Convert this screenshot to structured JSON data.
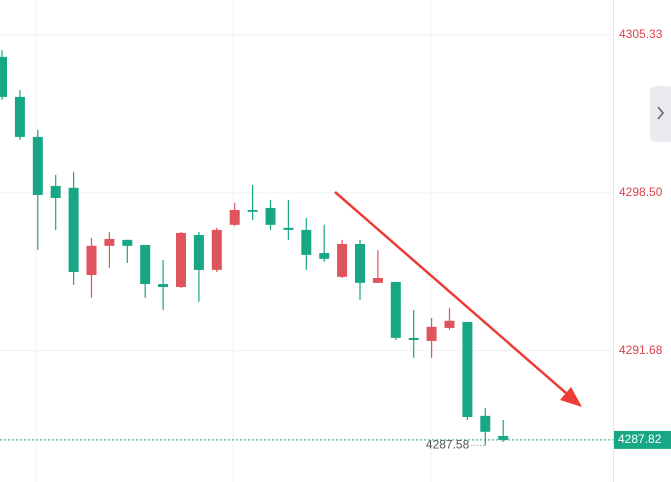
{
  "chart_data": {
    "type": "candlestick",
    "open": [
      4304.38,
      4302.65,
      4300.92,
      4298.8,
      4298.72,
      4294.95,
      4296.21,
      4296.47,
      4296.25,
      4294.56,
      4294.43,
      4296.68,
      4295.17,
      4297.12,
      4297.76,
      4297.85,
      4296.99,
      4296.9,
      4295.9,
      4294.87,
      4296.29,
      4294.61,
      4294.65,
      4292.23,
      4292.1,
      4292.66,
      4292.92,
      4288.86,
      4287.99
    ],
    "high": [
      4304.68,
      4302.95,
      4301.22,
      4299.28,
      4299.41,
      4296.55,
      4296.81,
      4296.47,
      4296.25,
      4295.6,
      4296.81,
      4296.81,
      4296.99,
      4298.07,
      4298.84,
      4298.2,
      4298.2,
      4297.42,
      4297.12,
      4296.47,
      4296.47,
      4296.03,
      4294.65,
      4293.44,
      4293.09,
      4293.53,
      4292.92,
      4289.2,
      4288.68
    ],
    "low": [
      4302.52,
      4300.79,
      4296.03,
      4296.9,
      4294.52,
      4293.96,
      4295.26,
      4295.47,
      4293.96,
      4293.44,
      4294.39,
      4293.79,
      4295.08,
      4297.07,
      4297.33,
      4296.9,
      4296.47,
      4295.17,
      4295.52,
      4294.82,
      4293.87,
      4294.61,
      4292.14,
      4291.37,
      4291.37,
      4292.58,
      4288.68,
      4287.58,
      4287.73
    ],
    "close": [
      4302.65,
      4300.92,
      4298.41,
      4298.28,
      4295.08,
      4296.21,
      4296.51,
      4296.21,
      4294.56,
      4294.43,
      4296.77,
      4295.17,
      4296.9,
      4297.76,
      4297.68,
      4297.12,
      4296.9,
      4295.82,
      4295.65,
      4296.29,
      4294.61,
      4294.82,
      4292.23,
      4292.14,
      4292.71,
      4292.97,
      4288.81,
      4288.17,
      4287.82
    ],
    "up_color": "#e0545e",
    "down_color": "#17a784",
    "axis_color": "#d9434a",
    "ylim": [
      4286.0,
      4306.84
    ],
    "yticks": [
      4305.33,
      {
        "value": 4298.5,
        "label": "4298.50"
      },
      4291.68
    ],
    "grid": true,
    "last_price": 4287.82,
    "low_annotation": 4287.58
  }
}
